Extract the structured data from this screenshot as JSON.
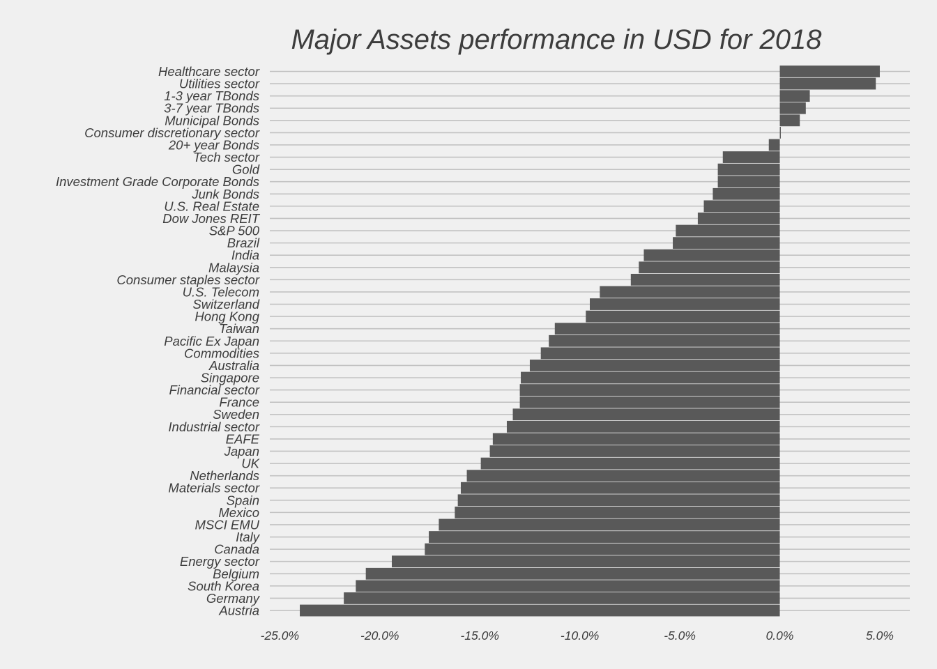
{
  "chart_data": {
    "type": "bar",
    "orientation": "horizontal",
    "title": "Major Assets performance in USD for 2018",
    "xlabel": "",
    "ylabel": "",
    "xlim": [
      -25.5,
      6.5
    ],
    "x_ticks": [
      -25,
      -20,
      -15,
      -10,
      -5,
      0,
      5
    ],
    "x_tick_labels": [
      "-25.0%",
      "-20.0%",
      "-15.0%",
      "-10.0%",
      "-5.0%",
      "0.0%",
      "5.0%"
    ],
    "unit": "%",
    "grid": "horizontal",
    "bar_color": "#595959",
    "gridline_color": "#c2c2c2",
    "background_color": "#f0f0f0",
    "categories": [
      "Healthcare sector",
      "Utilities sector",
      "1-3 year TBonds",
      "3-7 year TBonds",
      "Municipal Bonds",
      "Consumer discretionary sector",
      "20+ year Bonds",
      "Tech sector",
      "Gold",
      "Investment Grade Corporate Bonds",
      "Junk Bonds",
      "U.S. Real Estate",
      "Dow Jones REIT",
      "S&P 500",
      "Brazil",
      "India",
      "Malaysia",
      "Consumer staples sector",
      "U.S. Telecom",
      "Switzerland",
      "Hong Kong",
      "Taiwan",
      "Pacific Ex Japan",
      "Commodities",
      "Australia",
      "Singapore",
      "Financial sector",
      "France",
      "Sweden",
      "Industrial sector",
      "EAFE",
      "Japan",
      "UK",
      "Netherlands",
      "Materials sector",
      "Spain",
      "Mexico",
      "MSCI EMU",
      "Italy",
      "Canada",
      "Energy sector",
      "Belgium",
      "South Korea",
      "Germany",
      "Austria"
    ],
    "values": [
      5.0,
      4.8,
      1.5,
      1.3,
      1.0,
      0.05,
      -0.55,
      -2.85,
      -3.1,
      -3.1,
      -3.35,
      -3.8,
      -4.1,
      -5.2,
      -5.35,
      -6.8,
      -7.05,
      -7.45,
      -9.0,
      -9.5,
      -9.7,
      -11.25,
      -11.55,
      -11.95,
      -12.5,
      -12.95,
      -13.0,
      -13.0,
      -13.35,
      -13.65,
      -14.35,
      -14.5,
      -14.95,
      -15.65,
      -15.95,
      -16.1,
      -16.25,
      -17.05,
      -17.55,
      -17.75,
      -19.4,
      -20.7,
      -21.2,
      -21.8,
      -24.0
    ]
  }
}
